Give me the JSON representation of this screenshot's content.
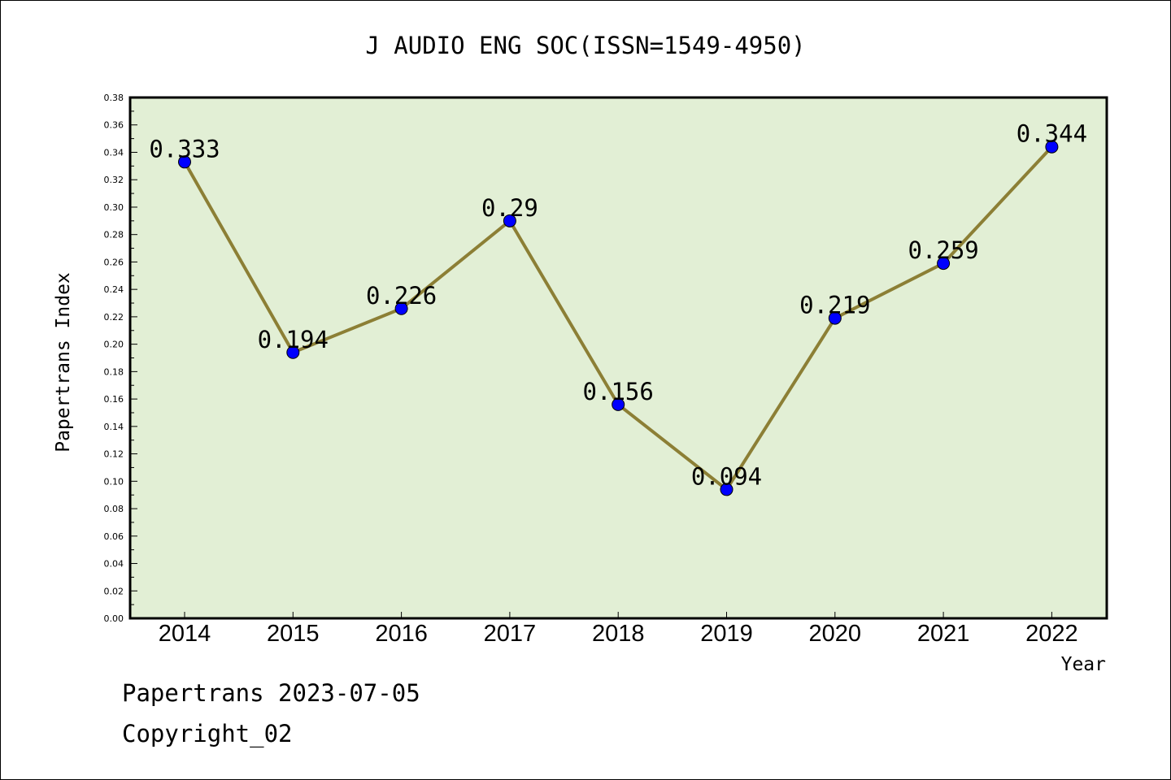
{
  "chart_data": {
    "type": "line",
    "title": "J AUDIO ENG SOC(ISSN=1549-4950)",
    "xlabel": "Year",
    "ylabel": "Papertrans Index",
    "categories": [
      "2014",
      "2015",
      "2016",
      "2017",
      "2018",
      "2019",
      "2020",
      "2021",
      "2022"
    ],
    "values": [
      0.333,
      0.194,
      0.226,
      0.29,
      0.156,
      0.094,
      0.219,
      0.259,
      0.344
    ],
    "data_labels": [
      "0.333",
      "0.194",
      "0.226",
      "0.29",
      "0.156",
      "0.094",
      "0.219",
      "0.259",
      "0.344"
    ],
    "ylim": [
      0,
      0.38
    ],
    "yticks": [
      "0.00",
      "0.02",
      "0.04",
      "0.06",
      "0.08",
      "0.10",
      "0.12",
      "0.14",
      "0.16",
      "0.18",
      "0.20",
      "0.22",
      "0.24",
      "0.26",
      "0.28",
      "0.30",
      "0.32",
      "0.34",
      "0.36",
      "0.38"
    ],
    "grid": false,
    "colors": {
      "plot_background": "#e2efd5",
      "line": "#8c7f35",
      "marker": "#0000ff"
    }
  },
  "footer": {
    "line1": "Papertrans 2023-07-05",
    "line2": "Copyright_02"
  }
}
